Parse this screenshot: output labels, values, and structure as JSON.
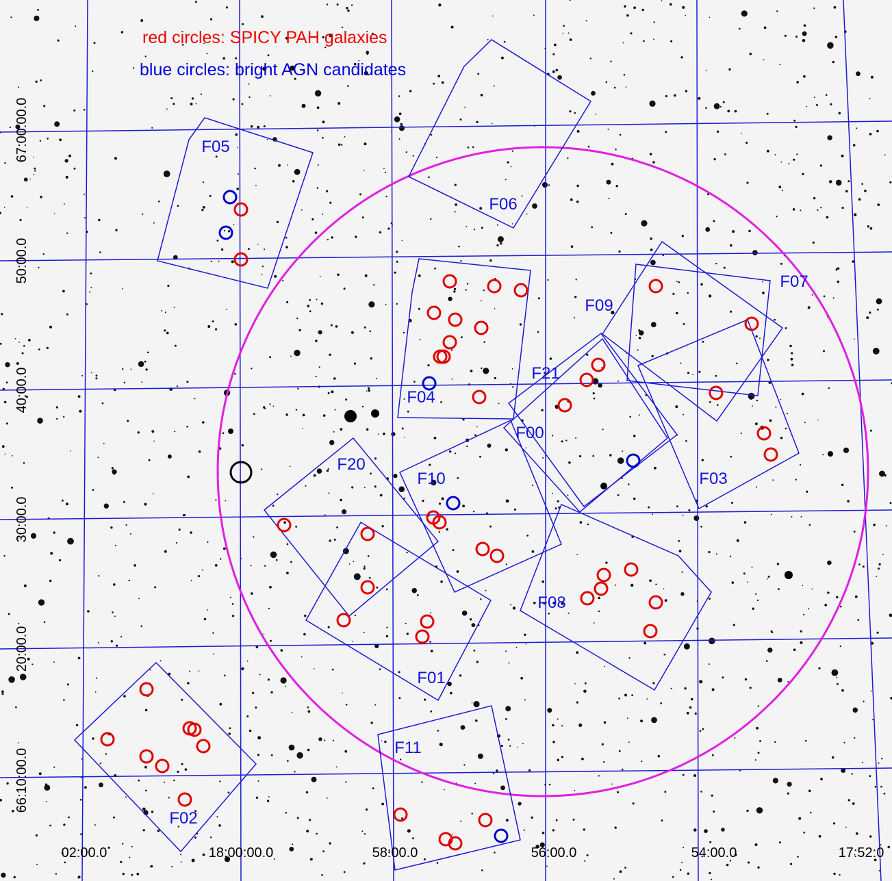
{
  "legend": {
    "red": "red circles: SPICY PAH galaxies",
    "blue": "blue circles: bright AGN candidates"
  },
  "fields": [
    "F05",
    "F06",
    "F04",
    "F07",
    "F09",
    "F03",
    "F21",
    "F00",
    "F10",
    "F20",
    "F01",
    "F08",
    "F02",
    "F11"
  ],
  "ra_labels": [
    "02:00.0",
    "18:00:00.0",
    "58:00.0",
    "56:00.0",
    "54:00.0",
    "17:52:0"
  ],
  "dec_labels": [
    "67:00:00.0",
    "50:00.0",
    "40:00.0",
    "30:00.0",
    "20:00.0",
    "66:10:00.0"
  ]
}
